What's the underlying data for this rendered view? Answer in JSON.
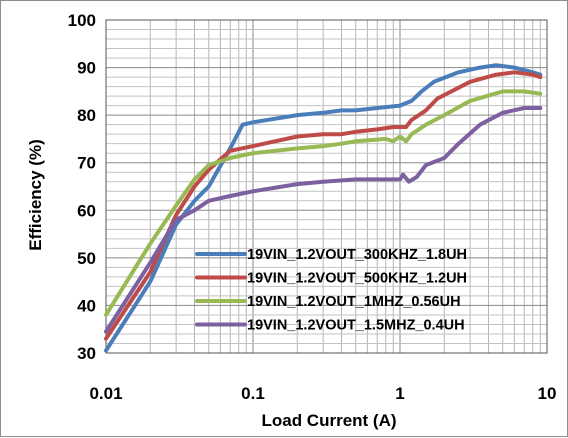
{
  "chart_data": {
    "type": "line",
    "xlabel": "Load Current (A)",
    "ylabel": "Efficiency (%)",
    "xscale": "log",
    "xlim": [
      0.01,
      10
    ],
    "ylim": [
      30,
      100
    ],
    "x_ticks": [
      "0.01",
      "0.1",
      "1",
      "10"
    ],
    "y_ticks": [
      "30",
      "40",
      "50",
      "60",
      "70",
      "80",
      "90",
      "100"
    ],
    "grid": true,
    "legend_position": "lower-right",
    "series": [
      {
        "name": "19VIN_1.2VOUT_300KHZ_1.8UH",
        "color": "#4a7ebb",
        "points": [
          [
            0.01,
            30.5
          ],
          [
            0.02,
            45
          ],
          [
            0.03,
            57
          ],
          [
            0.04,
            62
          ],
          [
            0.05,
            65
          ],
          [
            0.07,
            73
          ],
          [
            0.085,
            78
          ],
          [
            0.1,
            78.5
          ],
          [
            0.2,
            80
          ],
          [
            0.3,
            80.5
          ],
          [
            0.4,
            81
          ],
          [
            0.5,
            81
          ],
          [
            0.7,
            81.5
          ],
          [
            1.0,
            82
          ],
          [
            1.2,
            83
          ],
          [
            1.4,
            85
          ],
          [
            1.7,
            87
          ],
          [
            2.5,
            89
          ],
          [
            3.5,
            90
          ],
          [
            4.5,
            90.5
          ],
          [
            6.0,
            90
          ],
          [
            8.0,
            89
          ],
          [
            9.0,
            88.5
          ]
        ]
      },
      {
        "name": "19VIN_1.2VOUT_500KHZ_1.2UH",
        "color": "#be4b48",
        "points": [
          [
            0.01,
            33
          ],
          [
            0.02,
            47
          ],
          [
            0.03,
            59
          ],
          [
            0.04,
            65
          ],
          [
            0.05,
            68.5
          ],
          [
            0.07,
            72.5
          ],
          [
            0.1,
            73.5
          ],
          [
            0.2,
            75.5
          ],
          [
            0.3,
            76
          ],
          [
            0.4,
            76
          ],
          [
            0.5,
            76.5
          ],
          [
            0.7,
            77
          ],
          [
            0.9,
            77.5
          ],
          [
            1.1,
            77.5
          ],
          [
            1.2,
            79
          ],
          [
            1.5,
            81
          ],
          [
            1.8,
            83.5
          ],
          [
            3.0,
            87
          ],
          [
            4.5,
            88.5
          ],
          [
            6.0,
            89
          ],
          [
            8.0,
            88.5
          ],
          [
            9.0,
            88
          ]
        ]
      },
      {
        "name": "19VIN_1.2VOUT_1MHZ_0.56UH",
        "color": "#98b954",
        "points": [
          [
            0.01,
            38
          ],
          [
            0.02,
            53
          ],
          [
            0.03,
            61
          ],
          [
            0.04,
            66.5
          ],
          [
            0.05,
            69.5
          ],
          [
            0.07,
            71
          ],
          [
            0.1,
            72
          ],
          [
            0.2,
            73
          ],
          [
            0.3,
            73.5
          ],
          [
            0.4,
            74
          ],
          [
            0.5,
            74.5
          ],
          [
            0.8,
            75
          ],
          [
            0.9,
            74.5
          ],
          [
            1.0,
            75.5
          ],
          [
            1.1,
            74.5
          ],
          [
            1.2,
            76
          ],
          [
            1.5,
            78
          ],
          [
            2.0,
            80
          ],
          [
            3.0,
            83
          ],
          [
            5.0,
            85
          ],
          [
            7.0,
            85
          ],
          [
            9.0,
            84.5
          ]
        ]
      },
      {
        "name": "19VIN_1.2VOUT_1.5MHZ_0.4UH",
        "color": "#7d60a0",
        "points": [
          [
            0.01,
            34.5
          ],
          [
            0.02,
            49
          ],
          [
            0.03,
            58
          ],
          [
            0.04,
            60
          ],
          [
            0.05,
            62
          ],
          [
            0.07,
            63
          ],
          [
            0.1,
            64
          ],
          [
            0.2,
            65.5
          ],
          [
            0.3,
            66
          ],
          [
            0.5,
            66.5
          ],
          [
            0.8,
            66.5
          ],
          [
            1.0,
            66.5
          ],
          [
            1.05,
            67.5
          ],
          [
            1.15,
            66
          ],
          [
            1.3,
            67
          ],
          [
            1.5,
            69.5
          ],
          [
            2.0,
            71
          ],
          [
            2.5,
            74
          ],
          [
            3.5,
            78
          ],
          [
            5.0,
            80.5
          ],
          [
            7.0,
            81.5
          ],
          [
            9.0,
            81.5
          ]
        ]
      }
    ]
  }
}
